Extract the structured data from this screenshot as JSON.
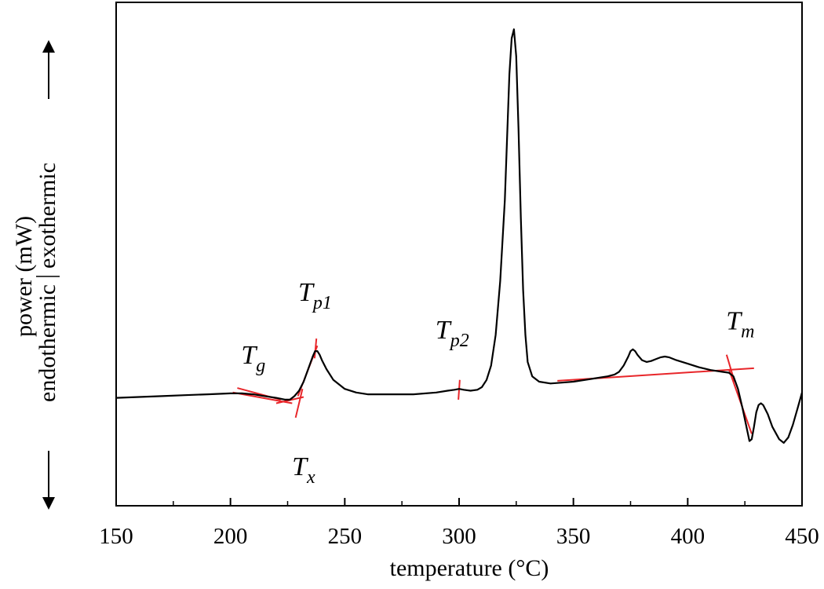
{
  "chart_data": {
    "type": "line",
    "title": "",
    "xlabel": "temperature  (°C)",
    "ylabel": {
      "line1": "power  (mW)",
      "line2_left": "endothermic",
      "line2_right": "exothermic"
    },
    "xlim": [
      150,
      450
    ],
    "xticks": [
      150,
      200,
      250,
      300,
      350,
      400,
      450
    ],
    "ylim": [
      -6,
      22
    ],
    "y_ticks_shown": false,
    "grid": false,
    "legend": "none",
    "colors": {
      "curve": "#000000",
      "construction": "#e8262a"
    },
    "series": [
      {
        "x": [
          150,
          160,
          170,
          180,
          190,
          200,
          205,
          210,
          215,
          220,
          224,
          226,
          228,
          230,
          232,
          234,
          236,
          237,
          238,
          239,
          240,
          242,
          245,
          250,
          255,
          260,
          270,
          280,
          290,
          295,
          298,
          300,
          302,
          305,
          308,
          310,
          312,
          314,
          316,
          318,
          320,
          321,
          322,
          323,
          324,
          325,
          326,
          327,
          328,
          329,
          330,
          332,
          335,
          340,
          345,
          350,
          355,
          360,
          365,
          368,
          370,
          372,
          374,
          375,
          376,
          377,
          378,
          380,
          382,
          384,
          386,
          388,
          390,
          392,
          395,
          400,
          405,
          410,
          415,
          418,
          420,
          422,
          424,
          426,
          427,
          428,
          429,
          430,
          431,
          432,
          433,
          435,
          437,
          440,
          442,
          444,
          446,
          448,
          450
        ],
        "y": [
          0,
          0.05,
          0.1,
          0.15,
          0.2,
          0.25,
          0.25,
          0.2,
          0.1,
          0,
          -0.1,
          -0.1,
          0.1,
          0.4,
          0.9,
          1.6,
          2.3,
          2.6,
          2.6,
          2.4,
          2.1,
          1.6,
          1.0,
          0.5,
          0.3,
          0.2,
          0.2,
          0.2,
          0.3,
          0.4,
          0.45,
          0.5,
          0.45,
          0.4,
          0.45,
          0.6,
          1.0,
          1.8,
          3.5,
          6.5,
          11.0,
          14.5,
          18.0,
          20.0,
          20.5,
          19.0,
          15.0,
          10.0,
          6.0,
          3.5,
          2.0,
          1.2,
          0.9,
          0.8,
          0.85,
          0.9,
          1.0,
          1.1,
          1.2,
          1.3,
          1.45,
          1.8,
          2.3,
          2.6,
          2.7,
          2.6,
          2.4,
          2.1,
          2.0,
          2.05,
          2.15,
          2.25,
          2.3,
          2.25,
          2.1,
          1.9,
          1.7,
          1.55,
          1.45,
          1.4,
          1.2,
          0.5,
          -0.6,
          -1.8,
          -2.4,
          -2.3,
          -1.6,
          -0.8,
          -0.4,
          -0.3,
          -0.4,
          -0.9,
          -1.6,
          -2.3,
          -2.5,
          -2.2,
          -1.5,
          -0.6,
          0.3
        ]
      }
    ],
    "construction_lines": [
      {
        "x": [
          201,
          227
        ],
        "y": [
          0.3,
          -0.3
        ]
      },
      {
        "x": [
          220,
          232
        ],
        "y": [
          -0.3,
          0.05
        ]
      },
      {
        "x": [
          229.5,
          238
        ],
        "y": [
          0.1,
          2.9
        ]
      },
      {
        "x": [
          343,
          429
        ],
        "y": [
          0.95,
          1.65
        ]
      }
    ],
    "tick_marks": [
      {
        "x": [
          203,
          222
        ],
        "y": [
          0.55,
          -0.1
        ]
      },
      {
        "x": [
          228.5,
          231.5
        ],
        "y": [
          -1.1,
          0.5
        ]
      },
      {
        "x": [
          236.8,
          237.6
        ],
        "y": [
          2.2,
          3.3
        ]
      },
      {
        "x": [
          299.7,
          300.3
        ],
        "y": [
          -0.1,
          1.0
        ]
      },
      {
        "x": [
          417,
          420.5
        ],
        "y": [
          2.4,
          0.9
        ]
      }
    ],
    "inflection_lines": [
      {
        "x": [
          418,
          428
        ],
        "y": [
          1.6,
          -2.0
        ]
      }
    ],
    "annotations": [
      {
        "main": "T",
        "sub": "g",
        "x": 210,
        "y": 1.9
      },
      {
        "main": "T",
        "sub": "x",
        "x": 232,
        "y": -4.3
      },
      {
        "main": "T",
        "sub": "p1",
        "x": 237,
        "y": 5.4
      },
      {
        "main": "T",
        "sub": "p2",
        "x": 297,
        "y": 3.3
      },
      {
        "main": "T",
        "sub": "m",
        "x": 423,
        "y": 3.8
      }
    ]
  }
}
